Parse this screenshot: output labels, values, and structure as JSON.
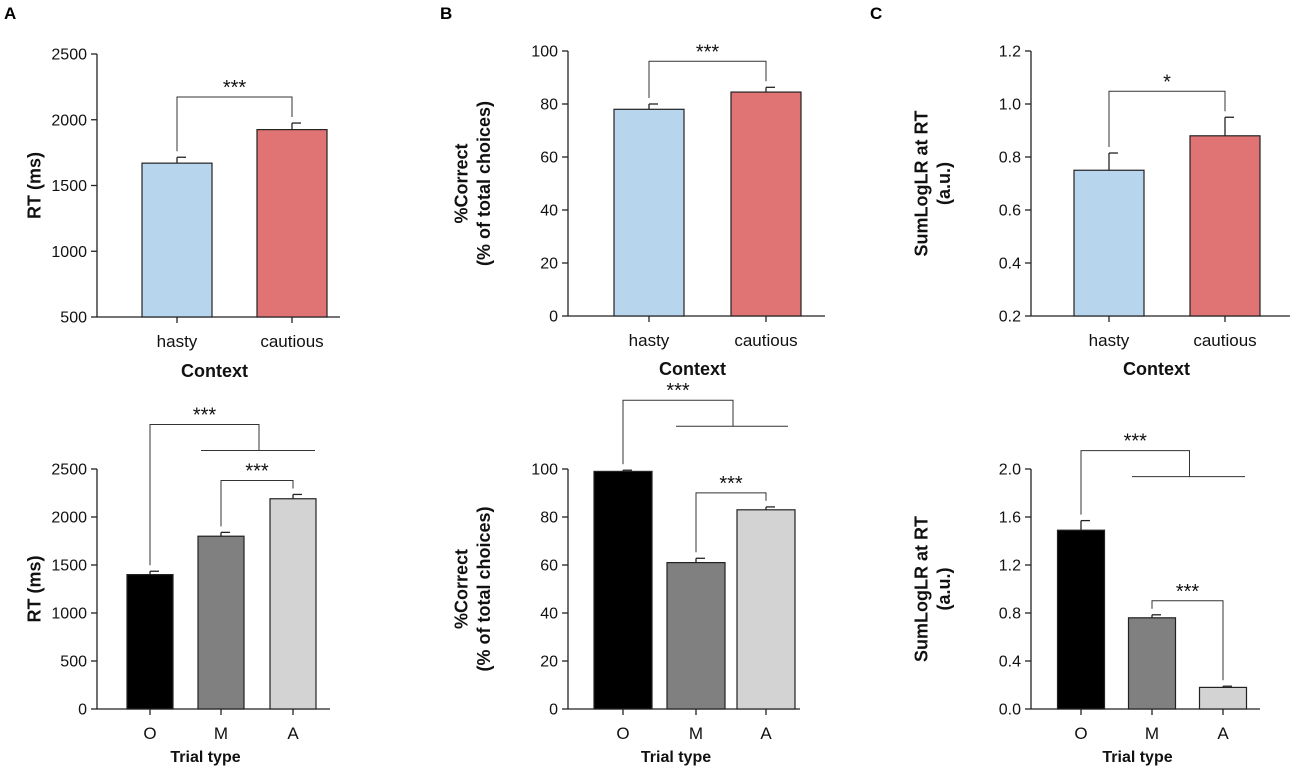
{
  "panel_letters": [
    "A",
    "B",
    "C"
  ],
  "colors": {
    "hasty": "#b8d5ee",
    "cautious": "#e07373",
    "O": "#000000",
    "M": "#808080",
    "A": "#d3d3d3",
    "axis": "#222222"
  },
  "chart_data": [
    {
      "id": "A-top",
      "panel": "A",
      "type": "bar",
      "title": "",
      "xlabel": "Context",
      "ylabel": "RT (ms)",
      "categories": [
        "hasty",
        "cautious"
      ],
      "values": [
        1670,
        1925
      ],
      "errors": [
        45,
        50
      ],
      "ylim": [
        500,
        2500
      ],
      "yticks": [
        500,
        1000,
        1500,
        2000,
        2500
      ],
      "tick_labels": [
        "500",
        "1000",
        "1500",
        "2000",
        "2500"
      ],
      "color_keys": [
        "hasty",
        "cautious"
      ],
      "annotations": [
        {
          "type": "bracket",
          "from": 0,
          "to": 1,
          "label": "***"
        }
      ]
    },
    {
      "id": "B-top",
      "panel": "B",
      "type": "bar",
      "title": "",
      "xlabel": "Context",
      "ylabel": [
        "%Correct",
        "(% of total choices)"
      ],
      "categories": [
        "hasty",
        "cautious"
      ],
      "values": [
        78,
        84.5
      ],
      "errors": [
        2,
        1.8
      ],
      "ylim": [
        0,
        100
      ],
      "yticks": [
        0,
        20,
        40,
        60,
        80,
        100
      ],
      "tick_labels": [
        "0",
        "20",
        "40",
        "60",
        "80",
        "100"
      ],
      "color_keys": [
        "hasty",
        "cautious"
      ],
      "annotations": [
        {
          "type": "bracket",
          "from": 0,
          "to": 1,
          "label": "***"
        }
      ]
    },
    {
      "id": "C-top",
      "panel": "C",
      "type": "bar",
      "title": "",
      "xlabel": "Context",
      "ylabel": [
        "SumLogLR at RT",
        "(a.u.)"
      ],
      "categories": [
        "hasty",
        "cautious"
      ],
      "values": [
        0.75,
        0.88
      ],
      "errors": [
        0.065,
        0.07
      ],
      "ylim": [
        0.2,
        1.2
      ],
      "yticks": [
        0.2,
        0.4,
        0.6,
        0.8,
        1.0,
        1.2
      ],
      "tick_labels": [
        "0.2",
        "0.4",
        "0.6",
        "0.8",
        "1.0",
        "1.2"
      ],
      "color_keys": [
        "hasty",
        "cautious"
      ],
      "annotations": [
        {
          "type": "bracket",
          "from": 0,
          "to": 1,
          "label": "*"
        }
      ]
    },
    {
      "id": "A-bottom",
      "panel": "A",
      "type": "bar",
      "title": "",
      "xlabel": "Trial type",
      "ylabel": "RT (ms)",
      "categories": [
        "O",
        "M",
        "A"
      ],
      "values": [
        1400,
        1800,
        2190
      ],
      "errors": [
        35,
        40,
        45
      ],
      "ylim": [
        0,
        2500
      ],
      "yticks": [
        0,
        500,
        1000,
        1500,
        2000,
        2500
      ],
      "tick_labels": [
        "0",
        "500",
        "1000",
        "1500",
        "2000",
        "2500"
      ],
      "color_keys": [
        "O",
        "M",
        "A"
      ],
      "annotations": [
        {
          "type": "bracket-group",
          "from": 0,
          "to_group": [
            1,
            2
          ],
          "label": "***"
        },
        {
          "type": "bracket",
          "from": 1,
          "to": 2,
          "label": "***"
        }
      ]
    },
    {
      "id": "B-bottom",
      "panel": "B",
      "type": "bar",
      "title": "",
      "xlabel": "Trial type",
      "ylabel": [
        "%Correct",
        "(% of total choices)"
      ],
      "categories": [
        "O",
        "M",
        "A"
      ],
      "values": [
        99,
        61,
        83
      ],
      "errors": [
        0.5,
        1.8,
        1.2
      ],
      "ylim": [
        0,
        100
      ],
      "yticks": [
        0,
        20,
        40,
        60,
        80,
        100
      ],
      "tick_labels": [
        "0",
        "20",
        "40",
        "60",
        "80",
        "100"
      ],
      "color_keys": [
        "O",
        "M",
        "A"
      ],
      "annotations": [
        {
          "type": "bracket-group",
          "from": 0,
          "to_group": [
            1,
            2
          ],
          "label": "***"
        },
        {
          "type": "bracket",
          "from": 1,
          "to": 2,
          "label": "***"
        }
      ]
    },
    {
      "id": "C-bottom",
      "panel": "C",
      "type": "bar",
      "title": "",
      "xlabel": "Trial type",
      "ylabel": [
        "SumLogLR at RT",
        "(a.u.)"
      ],
      "categories": [
        "O",
        "M",
        "A"
      ],
      "values": [
        1.49,
        0.76,
        0.18
      ],
      "errors": [
        0.08,
        0.025,
        0.01
      ],
      "ylim": [
        0,
        2.0
      ],
      "yticks": [
        0,
        0.4,
        0.8,
        1.2,
        1.6,
        2.0
      ],
      "tick_labels": [
        "0.0",
        "0.4",
        "0.8",
        "1.2",
        "1.6",
        "2.0"
      ],
      "color_keys": [
        "O",
        "M",
        "A"
      ],
      "annotations": [
        {
          "type": "bracket-group",
          "from": 0,
          "to_group": [
            1,
            2
          ],
          "label": "***"
        },
        {
          "type": "bracket",
          "from": 1,
          "to": 2,
          "label": "***"
        }
      ]
    }
  ]
}
